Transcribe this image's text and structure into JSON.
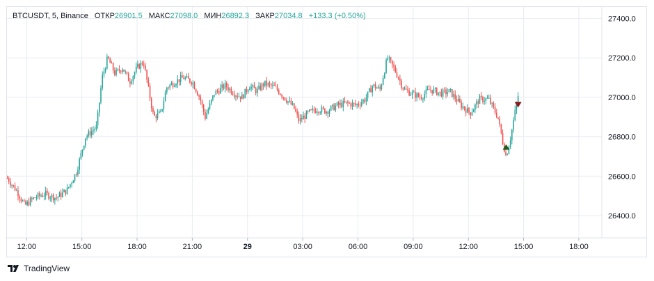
{
  "legend": {
    "symbol": "BTCUSDT, 5, Binance",
    "open_label": "ОТКР",
    "open_value": "26901.5",
    "high_label": "МАКС",
    "high_value": "27098.0",
    "low_label": "МИН",
    "low_value": "26892.3",
    "close_label": "ЗАКР",
    "close_value": "27034.8",
    "change": "+133.3 (+0.50%)"
  },
  "brand": {
    "name": "TradingView",
    "logo_icon": "tradingview-logo-icon"
  },
  "colors": {
    "up": "#26a69a",
    "down": "#ef5350",
    "grid": "#e9ecf2",
    "axis_text": "#131722"
  },
  "chart_data": {
    "type": "candlestick",
    "symbol": "BTCUSDT",
    "interval": "5",
    "exchange": "Binance",
    "ylim": [
      26300,
      27450
    ],
    "y_ticks": [
      {
        "value": 26400,
        "label": "26400.0"
      },
      {
        "value": 26600,
        "label": "26600.0"
      },
      {
        "value": 26800,
        "label": "26800.0"
      },
      {
        "value": 27000,
        "label": "27000.0"
      },
      {
        "value": 27200,
        "label": "27200.0"
      },
      {
        "value": 27400,
        "label": "27400.0"
      }
    ],
    "x_ticks": [
      {
        "hour": 12,
        "label": "12:00",
        "bold": false
      },
      {
        "hour": 15,
        "label": "15:00",
        "bold": false
      },
      {
        "hour": 18,
        "label": "18:00",
        "bold": false
      },
      {
        "hour": 21,
        "label": "21:00",
        "bold": false
      },
      {
        "hour": 24,
        "label": "29",
        "bold": true
      },
      {
        "hour": 27,
        "label": "03:00",
        "bold": false
      },
      {
        "hour": 30,
        "label": "06:00",
        "bold": false
      },
      {
        "hour": 33,
        "label": "09:00",
        "bold": false
      },
      {
        "hour": 36,
        "label": "12:00",
        "bold": false
      },
      {
        "hour": 39,
        "label": "15:00",
        "bold": false
      },
      {
        "hour": 42,
        "label": "18:00",
        "bold": false
      }
    ],
    "x_range_hours": [
      10.93,
      43.25
    ],
    "first_candle_hour": 10.95,
    "candle_interval_minutes": 5,
    "grid": true,
    "price_path": [
      [
        10.95,
        26590
      ],
      [
        11.5,
        26520
      ],
      [
        11.9,
        26450
      ],
      [
        12.4,
        26490
      ],
      [
        13.0,
        26510
      ],
      [
        13.6,
        26490
      ],
      [
        14.2,
        26530
      ],
      [
        14.7,
        26620
      ],
      [
        15.2,
        26800
      ],
      [
        15.8,
        26850
      ],
      [
        16.1,
        27100
      ],
      [
        16.4,
        27200
      ],
      [
        16.8,
        27120
      ],
      [
        17.2,
        27150
      ],
      [
        17.6,
        27080
      ],
      [
        18.0,
        27150
      ],
      [
        18.35,
        27180
      ],
      [
        18.7,
        27000
      ],
      [
        18.9,
        26900
      ],
      [
        19.3,
        26920
      ],
      [
        19.6,
        27050
      ],
      [
        20.1,
        27080
      ],
      [
        20.5,
        27100
      ],
      [
        21.0,
        27080
      ],
      [
        21.4,
        27000
      ],
      [
        21.7,
        26900
      ],
      [
        22.2,
        27020
      ],
      [
        22.8,
        27060
      ],
      [
        23.3,
        27020
      ],
      [
        23.7,
        27000
      ],
      [
        24.1,
        27060
      ],
      [
        24.5,
        27030
      ],
      [
        24.9,
        27070
      ],
      [
        25.5,
        27050
      ],
      [
        26.0,
        27000
      ],
      [
        26.5,
        26950
      ],
      [
        26.8,
        26880
      ],
      [
        27.3,
        26920
      ],
      [
        27.8,
        26940
      ],
      [
        28.3,
        26930
      ],
      [
        28.9,
        26960
      ],
      [
        29.4,
        26970
      ],
      [
        29.9,
        26960
      ],
      [
        30.4,
        26990
      ],
      [
        30.8,
        27060
      ],
      [
        31.2,
        27040
      ],
      [
        31.6,
        27200
      ],
      [
        32.0,
        27140
      ],
      [
        32.5,
        27040
      ],
      [
        32.9,
        27020
      ],
      [
        33.4,
        27000
      ],
      [
        33.9,
        27040
      ],
      [
        34.5,
        27020
      ],
      [
        35.0,
        27030
      ],
      [
        35.6,
        26960
      ],
      [
        36.1,
        26920
      ],
      [
        36.6,
        26990
      ],
      [
        37.1,
        26990
      ],
      [
        37.6,
        26900
      ],
      [
        37.9,
        26760
      ],
      [
        38.05,
        26700
      ],
      [
        38.3,
        26800
      ],
      [
        38.6,
        26960
      ],
      [
        38.75,
        27030
      ]
    ],
    "markers": [
      {
        "type": "sell",
        "hour": 38.7,
        "price": 26962,
        "shape": "triangle-down",
        "color": "#8b1a1a"
      },
      {
        "type": "buy",
        "hour": 38.05,
        "price": 26748,
        "shape": "triangle-up",
        "color": "#1b5e20"
      }
    ]
  }
}
